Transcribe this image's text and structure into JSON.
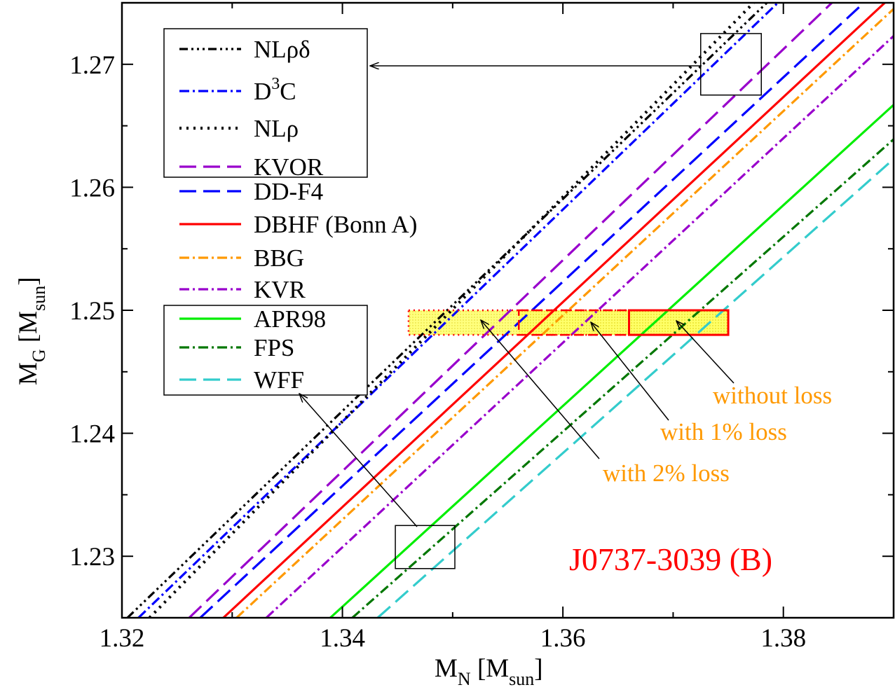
{
  "chart_data": {
    "type": "line",
    "xlabel": {
      "main": "M",
      "sub": "N",
      "unit_main": "M",
      "unit_sub": "sun"
    },
    "ylabel": {
      "main": "M",
      "sub": "G",
      "unit_main": "M",
      "unit_sub": "sun"
    },
    "xlim": [
      1.32,
      1.39
    ],
    "ylim": [
      1.225,
      1.275
    ],
    "x_ticks": [
      1.32,
      1.34,
      1.36,
      1.38
    ],
    "x_tick_labels": [
      "1.32",
      "1.34",
      "1.36",
      "1.38"
    ],
    "y_ticks": [
      1.23,
      1.24,
      1.25,
      1.26,
      1.27
    ],
    "y_tick_labels": [
      "1.23",
      "1.24",
      "1.25",
      "1.26",
      "1.27"
    ],
    "grid": false,
    "series": [
      {
        "name": "NLρδ",
        "legend_html": "NLρδ",
        "color": "#000000",
        "dash": "12 5 3 5 3 5 3 5",
        "width": 3.2,
        "points": [
          [
            1.3205,
            1.225
          ],
          [
            1.3785,
            1.275
          ]
        ]
      },
      {
        "name": "D³C",
        "legend_main": "D",
        "legend_sup": "3",
        "legend_tail": "C",
        "color": "#0000ff",
        "dash": "14 5 3 5",
        "width": 3.2,
        "points": [
          [
            1.3215,
            1.225
          ],
          [
            1.3795,
            1.275
          ]
        ]
      },
      {
        "name": "NLρ",
        "legend_html": "NLρ",
        "color": "#000000",
        "dash": "3 7",
        "width": 4.2,
        "points": [
          [
            1.3225,
            1.225
          ],
          [
            1.3773,
            1.275
          ]
        ]
      },
      {
        "name": "KVOR",
        "legend_html": "KVOR",
        "color": "#9900cc",
        "dash": "24 10",
        "width": 3.2,
        "points": [
          [
            1.3261,
            1.225
          ],
          [
            1.3844,
            1.275
          ]
        ]
      },
      {
        "name": "DD-F4",
        "legend_html": "DD-F4",
        "color": "#0000ff",
        "dash": "24 10",
        "width": 3.2,
        "points": [
          [
            1.3271,
            1.225
          ],
          [
            1.3873,
            1.275
          ]
        ]
      },
      {
        "name": "DBHF (Bonn A)",
        "legend_html": "DBHF (Bonn A)",
        "color": "#ff0000",
        "dash": "",
        "width": 3.2,
        "points": [
          [
            1.3292,
            1.225
          ],
          [
            1.3892,
            1.275
          ]
        ]
      },
      {
        "name": "BBG",
        "legend_html": "BBG",
        "color": "#ff9900",
        "dash": "14 5 3 5",
        "width": 3.2,
        "points": [
          [
            1.3304,
            1.225
          ],
          [
            1.39,
            1.2745
          ]
        ]
      },
      {
        "name": "KVR",
        "legend_html": "KVR",
        "color": "#9900cc",
        "dash": "14 5 3 5",
        "width": 3.2,
        "points": [
          [
            1.3331,
            1.225
          ],
          [
            1.39,
            1.2723
          ]
        ]
      },
      {
        "name": "APR98",
        "legend_html": "APR98",
        "color": "#00ee00",
        "dash": "",
        "width": 3.2,
        "points": [
          [
            1.3389,
            1.225
          ],
          [
            1.39,
            1.2667
          ]
        ]
      },
      {
        "name": "FPS",
        "legend_html": "FPS",
        "color": "#007700",
        "dash": "14 5 3 5",
        "width": 3.2,
        "points": [
          [
            1.3409,
            1.225
          ],
          [
            1.39,
            1.2639
          ]
        ]
      },
      {
        "name": "WFF",
        "legend_html": "WFF",
        "color": "#33cccc",
        "dash": "24 10",
        "width": 3.2,
        "points": [
          [
            1.3432,
            1.225
          ],
          [
            1.39,
            1.2623
          ]
        ]
      }
    ],
    "regions": [
      {
        "label": "with 2% loss",
        "x": [
          1.346,
          1.375
        ],
        "y": [
          1.248,
          1.25
        ],
        "border": "dotted"
      },
      {
        "label": "with 1% loss",
        "x": [
          1.356,
          1.375
        ],
        "y": [
          1.248,
          1.25
        ],
        "border": "dashed"
      },
      {
        "label": "without loss",
        "x": [
          1.366,
          1.375
        ],
        "y": [
          1.248,
          1.25
        ],
        "border": "solid"
      }
    ],
    "zoom_boxes": [
      {
        "x": [
          1.3725,
          1.378
        ],
        "y": [
          1.2675,
          1.2725
        ]
      },
      {
        "x": [
          1.3448,
          1.3502
        ],
        "y": [
          1.229,
          1.2325
        ]
      }
    ],
    "annotations": {
      "without_loss": "without loss",
      "with_1pct": "with 1% loss",
      "with_2pct": "with 2% loss",
      "pulsar": "J0737-3039 (B)"
    }
  }
}
